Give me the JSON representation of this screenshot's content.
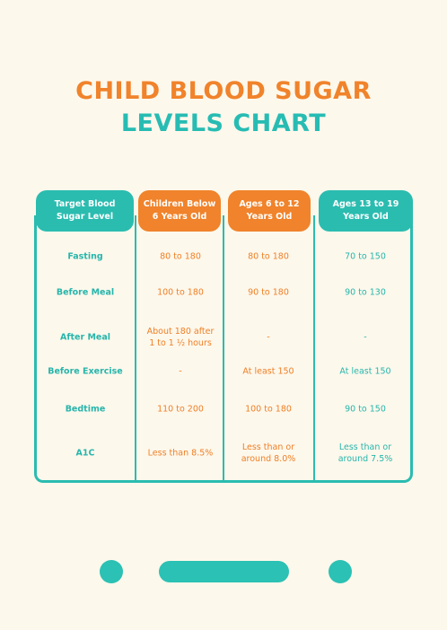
{
  "title": {
    "line1": "CHILD BLOOD SUGAR",
    "line2": "LEVELS CHART"
  },
  "headers": [
    "Target Blood\nSugar Level",
    "Children Below\n6 Years Old",
    "Ages 6 to 12\nYears Old",
    "Ages 13 to 19\nYears Old"
  ],
  "rows": [
    [
      "Fasting",
      "80 to 180",
      "80 to 180",
      "70 to 150"
    ],
    [
      "Before Meal",
      "100 to 180",
      "90 to 180",
      "90 to 130"
    ],
    [
      "After Meal",
      "About 180 after\n1 to 1 ½ hours",
      "-",
      "-"
    ],
    [
      "Before Exercise",
      "-",
      "At least 150",
      "At least 150"
    ],
    [
      "Bedtime",
      "110 to 200",
      "100 to 180",
      "90 to 150"
    ],
    [
      "A1C",
      "Less than 8.5%",
      "Less than or\naround 8.0%",
      "Less than or\naround 7.5%"
    ]
  ],
  "colors": {
    "teal": "#2bbcb0",
    "orange": "#f0832b",
    "background": "#fdf8ec"
  }
}
